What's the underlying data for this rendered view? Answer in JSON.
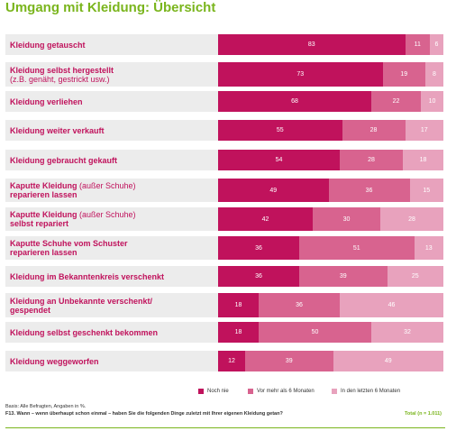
{
  "title": "Umgang mit Kleidung: Übersicht",
  "colors": {
    "accent": "#7ab51d",
    "series": [
      "#c0125c",
      "#d8638f",
      "#e8a2bd"
    ],
    "label": "#c0125c"
  },
  "chart_data": {
    "type": "bar",
    "orientation": "horizontal",
    "stacked": true,
    "title": "Umgang mit Kleidung: Übersicht",
    "categories": [
      {
        "label": "Kleidung getauscht",
        "sub": ""
      },
      {
        "label": "Kleidung selbst hergestellt",
        "sub": "(z.B. genäht, gestrickt usw.)"
      },
      {
        "label": "Kleidung verliehen",
        "sub": ""
      },
      {
        "label": "Kleidung weiter verkauft",
        "sub": ""
      },
      {
        "label": "Kleidung gebraucht gekauft",
        "sub": ""
      },
      {
        "label": "Kaputte Kleidung (außer Schuhe) reparieren lassen",
        "sub": ""
      },
      {
        "label": "Kaputte Kleidung (außer Schuhe) selbst repariert",
        "sub": ""
      },
      {
        "label": "Kaputte Schuhe vom Schuster reparieren lassen",
        "sub": ""
      },
      {
        "label": "Kleidung im Bekanntenkreis verschenkt",
        "sub": ""
      },
      {
        "label": "Kleidung an Unbekannte verschenkt/ gespendet",
        "sub": ""
      },
      {
        "label": "Kleidung selbst geschenkt bekommen",
        "sub": ""
      },
      {
        "label": "Kleidung weggeworfen",
        "sub": ""
      }
    ],
    "series": [
      {
        "name": "Noch nie",
        "values": [
          83,
          73,
          68,
          55,
          54,
          49,
          42,
          36,
          36,
          18,
          18,
          12
        ]
      },
      {
        "name": "Vor mehr als 6 Monaten",
        "values": [
          11,
          19,
          22,
          28,
          28,
          36,
          30,
          51,
          39,
          36,
          50,
          39
        ]
      },
      {
        "name": "In den letzten 6 Monaten",
        "values": [
          6,
          8,
          10,
          17,
          18,
          15,
          28,
          13,
          25,
          46,
          32,
          49
        ]
      }
    ],
    "xlim": [
      0,
      100
    ],
    "legend_position": "bottom-right"
  },
  "footnotes": {
    "basis": "Basis: Alle Befragten, Angaben in %.",
    "question": "F13. Wann – wenn überhaupt schon einmal – haben Sie die folgenden Dinge zuletzt mit Ihrer eigenen Kleidung getan?",
    "total": "Total (n = 1.011)"
  }
}
